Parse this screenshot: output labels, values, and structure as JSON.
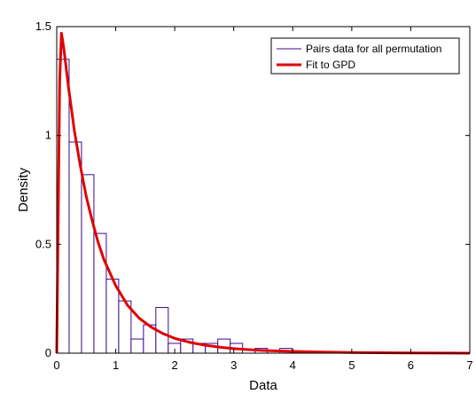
{
  "chart_data": {
    "type": "bar",
    "xlabel": "Data",
    "ylabel": "Density",
    "xlim": [
      0,
      7
    ],
    "ylim": [
      0,
      1.5
    ],
    "xticks": [
      "0",
      "1",
      "2",
      "3",
      "4",
      "5",
      "6",
      "7"
    ],
    "yticks": [
      "0",
      "0.5",
      "1",
      "1.5"
    ],
    "legend_position": "top-right",
    "grid": false,
    "series": [
      {
        "name": "Pairs data for all permutation",
        "kind": "histogram",
        "color": "#3b0a8c",
        "bin_width": 0.21,
        "bins": [
          {
            "x0": 0.0,
            "value": 1.35
          },
          {
            "x0": 0.21,
            "value": 0.97
          },
          {
            "x0": 0.42,
            "value": 0.82
          },
          {
            "x0": 0.63,
            "value": 0.55
          },
          {
            "x0": 0.84,
            "value": 0.34
          },
          {
            "x0": 1.05,
            "value": 0.24
          },
          {
            "x0": 1.26,
            "value": 0.065
          },
          {
            "x0": 1.47,
            "value": 0.13
          },
          {
            "x0": 1.68,
            "value": 0.21
          },
          {
            "x0": 1.89,
            "value": 0.045
          },
          {
            "x0": 2.1,
            "value": 0.065
          },
          {
            "x0": 2.31,
            "value": 0.045
          },
          {
            "x0": 2.52,
            "value": 0.045
          },
          {
            "x0": 2.73,
            "value": 0.065
          },
          {
            "x0": 2.94,
            "value": 0.045
          },
          {
            "x0": 3.15,
            "value": 0.015
          },
          {
            "x0": 3.36,
            "value": 0.022
          },
          {
            "x0": 3.57,
            "value": 0.0
          },
          {
            "x0": 3.78,
            "value": 0.022
          },
          {
            "x0": 3.99,
            "value": 0.0
          }
        ]
      },
      {
        "name": "Fit to GPD",
        "kind": "line",
        "color": "#e00000",
        "x": [
          0,
          0.05,
          0.08,
          0.12,
          0.2,
          0.3,
          0.4,
          0.5,
          0.6,
          0.7,
          0.8,
          0.9,
          1.0,
          1.2,
          1.4,
          1.6,
          1.8,
          2.0,
          2.25,
          2.5,
          2.75,
          3.0,
          3.5,
          4.0,
          4.5,
          5.0,
          6.0,
          7.0
        ],
        "y": [
          0,
          1.25,
          1.47,
          1.4,
          1.22,
          1.02,
          0.86,
          0.72,
          0.61,
          0.51,
          0.43,
          0.37,
          0.31,
          0.22,
          0.16,
          0.12,
          0.09,
          0.068,
          0.05,
          0.037,
          0.028,
          0.021,
          0.012,
          0.008,
          0.005,
          0.003,
          0.001,
          0.0
        ]
      }
    ]
  }
}
